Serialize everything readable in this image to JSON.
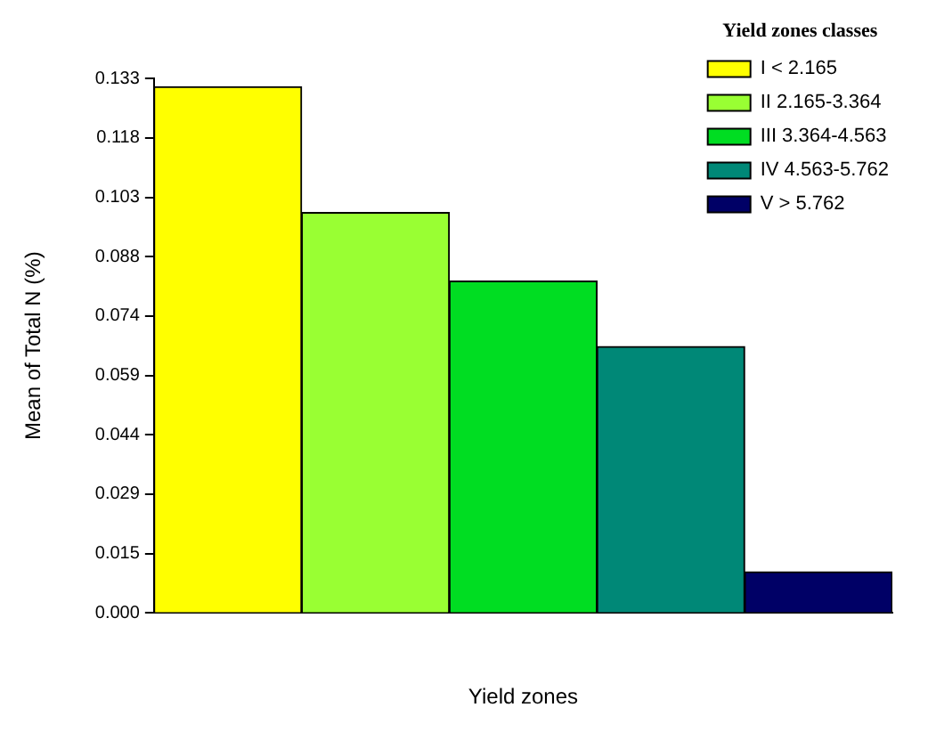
{
  "chart_data": {
    "type": "bar",
    "xlabel": "Yield zones",
    "ylabel": "Mean of Total N (%)",
    "legend_title": "Yield zones classes",
    "categories": [
      null,
      null,
      null,
      null,
      null
    ],
    "series": [
      {
        "name": "I < 2.165",
        "color": "#ffff00",
        "values": [
          0.1305,
          null,
          null,
          null,
          null
        ]
      },
      {
        "name": "II 2.165-3.364",
        "color": "#99ff33",
        "values": [
          null,
          0.0993,
          null,
          null,
          null
        ]
      },
      {
        "name": "III 3.364-4.563",
        "color": "#00dd22",
        "values": [
          null,
          null,
          0.0823,
          null,
          null
        ]
      },
      {
        "name": "IV 4.563-5.762",
        "color": "#008877",
        "values": [
          null,
          null,
          null,
          0.0661,
          null
        ]
      },
      {
        "name": "V > 5.762",
        "color": "#000066",
        "values": [
          null,
          null,
          null,
          null,
          0.0102
        ]
      }
    ],
    "ylim": [
      0,
      0.1326
    ],
    "yticks": [
      {
        "value": 0,
        "label": "0.000"
      },
      {
        "value": 0.0147,
        "label": "0.015"
      },
      {
        "value": 0.0295,
        "label": "0.029"
      },
      {
        "value": 0.0442,
        "label": "0.044"
      },
      {
        "value": 0.0589,
        "label": "0.059"
      },
      {
        "value": 0.0737,
        "label": "0.074"
      },
      {
        "value": 0.0884,
        "label": "0.088"
      },
      {
        "value": 0.1031,
        "label": "0.103"
      },
      {
        "value": 0.1179,
        "label": "0.118"
      },
      {
        "value": 0.1326,
        "label": "0.133"
      }
    ],
    "grid": false,
    "legend": "top right"
  }
}
